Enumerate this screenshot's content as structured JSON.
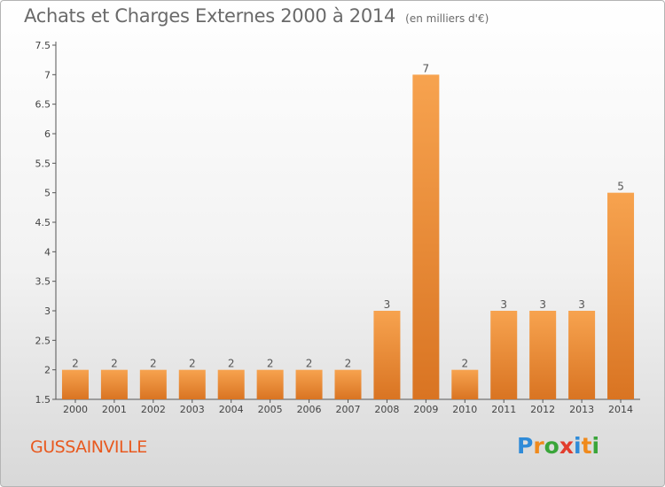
{
  "header": {
    "title": "Achats et Charges Externes 2000 à 2014",
    "subtitle": "(en milliers d'€)"
  },
  "footer": {
    "commune": "GUSSAINVILLE",
    "logo_letters": [
      "P",
      "r",
      "o",
      "x",
      "i",
      "t",
      "i"
    ],
    "logo_colors": [
      "#2f8bd8",
      "#f08a1c",
      "#3aa53a",
      "#e23d2d",
      "#2f8bd8",
      "#f08a1c",
      "#3aa53a"
    ]
  },
  "chart_data": {
    "type": "bar",
    "categories": [
      "2000",
      "2001",
      "2002",
      "2003",
      "2004",
      "2005",
      "2006",
      "2007",
      "2008",
      "2009",
      "2010",
      "2011",
      "2012",
      "2013",
      "2014"
    ],
    "values": [
      2,
      2,
      2,
      2,
      2,
      2,
      2,
      2,
      3,
      7,
      2,
      3,
      3,
      3,
      5
    ],
    "data_labels": [
      "2",
      "2",
      "2",
      "2",
      "2",
      "2",
      "2",
      "2",
      "3",
      "7",
      "2",
      "3",
      "3",
      "3",
      "5"
    ],
    "title": "Achats et Charges Externes 2000 à 2014",
    "xlabel": "",
    "ylabel": "",
    "ylim": [
      1.5,
      7.5
    ],
    "yticks": [
      "1.5",
      "2",
      "2.5",
      "3",
      "3.5",
      "4",
      "4.5",
      "5",
      "5.5",
      "6",
      "6.5",
      "7",
      "7.5"
    ],
    "grid": false,
    "colors": {
      "bar_light": "#f7a34f",
      "bar_dark": "#d97422",
      "axis": "#555555"
    }
  }
}
